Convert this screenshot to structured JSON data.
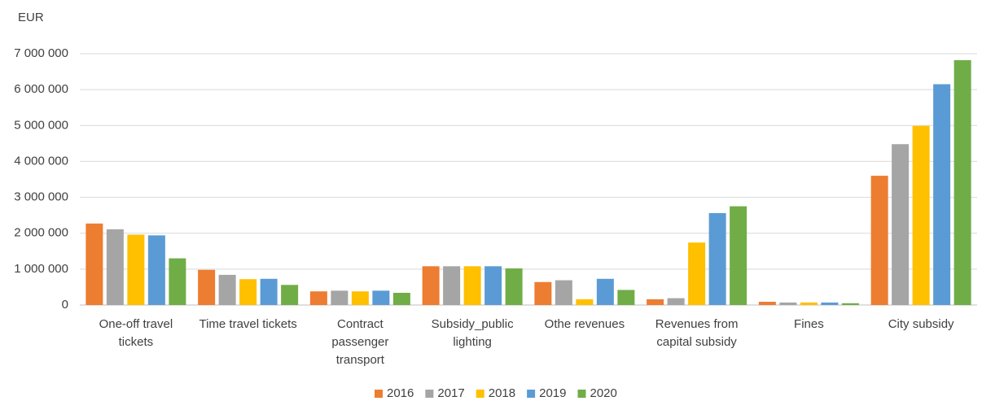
{
  "chart_data": {
    "type": "bar",
    "y_label": "EUR",
    "categories": [
      "One-off travel tickets",
      "Time travel tickets",
      "Contract passenger transport",
      "Subsidy_public lighting",
      "Othe revenues",
      "Revenues from capital subsidy",
      "Fines",
      "City subsidy"
    ],
    "series": [
      {
        "name": "2016",
        "color": "#ed7d31",
        "values": [
          2270000,
          980000,
          380000,
          1080000,
          640000,
          160000,
          90000,
          3600000
        ]
      },
      {
        "name": "2017",
        "color": "#a5a5a5",
        "values": [
          2110000,
          840000,
          400000,
          1080000,
          690000,
          190000,
          70000,
          4480000
        ]
      },
      {
        "name": "2018",
        "color": "#ffc000",
        "values": [
          1960000,
          720000,
          380000,
          1080000,
          160000,
          1740000,
          70000,
          4990000
        ]
      },
      {
        "name": "2019",
        "color": "#5b9bd5",
        "values": [
          1940000,
          730000,
          400000,
          1080000,
          730000,
          2560000,
          70000,
          6150000
        ]
      },
      {
        "name": "2020",
        "color": "#70ad47",
        "values": [
          1300000,
          560000,
          340000,
          1020000,
          420000,
          2750000,
          50000,
          6820000
        ]
      }
    ],
    "ylim": [
      0,
      7000000
    ],
    "yticks": [
      0,
      {
        "value": 1000000,
        "label": "1 000 000"
      },
      {
        "value": 2000000,
        "label": "2 000 000"
      },
      {
        "value": 3000000,
        "label": "3 000 000"
      },
      {
        "value": 4000000,
        "label": "4 000 000"
      },
      {
        "value": 5000000,
        "label": "5 000 000"
      },
      {
        "value": 6000000,
        "label": "6 000 000"
      },
      {
        "value": 7000000,
        "label": "7 000 000"
      }
    ],
    "grid": true,
    "legend": "bottom"
  }
}
